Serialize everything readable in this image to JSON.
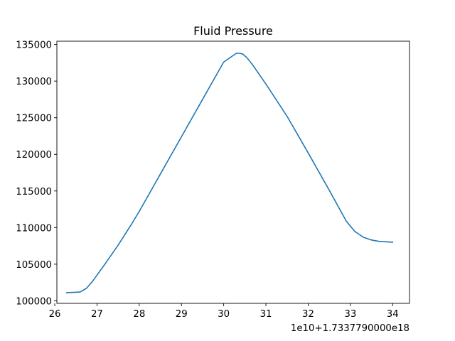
{
  "chart_data": {
    "type": "line",
    "title": "Fluid Pressure",
    "xlabel": "",
    "ylabel": "",
    "x_offset_label": "1e10+1.7337790000e18",
    "xlim": [
      26.05,
      34.4
    ],
    "ylim": [
      99650,
      135450
    ],
    "xticks": [
      26,
      27,
      28,
      29,
      30,
      31,
      32,
      33,
      34
    ],
    "xtick_labels": [
      "26",
      "27",
      "28",
      "29",
      "30",
      "31",
      "32",
      "33",
      "34"
    ],
    "yticks": [
      100000,
      105000,
      110000,
      115000,
      120000,
      125000,
      130000,
      135000
    ],
    "ytick_labels": [
      "100000",
      "105000",
      "110000",
      "115000",
      "120000",
      "125000",
      "130000",
      "135000"
    ],
    "grid": false,
    "legend": "none",
    "series": [
      {
        "color": "#1f77b4",
        "x": [
          26.28,
          26.6,
          26.75,
          26.9,
          27.0,
          27.2,
          27.5,
          27.8,
          28.0,
          28.5,
          29.0,
          29.5,
          30.0,
          30.2,
          30.3,
          30.38,
          30.45,
          30.55,
          30.7,
          31.0,
          31.5,
          32.0,
          32.5,
          32.9,
          33.1,
          33.3,
          33.5,
          33.7,
          34.0
        ],
        "y": [
          101100,
          101200,
          101700,
          102700,
          103500,
          105100,
          107600,
          110300,
          112200,
          117300,
          122400,
          127500,
          132600,
          133400,
          133800,
          133800,
          133700,
          133200,
          132100,
          129600,
          125200,
          120200,
          115100,
          110900,
          109500,
          108700,
          108300,
          108100,
          108000
        ]
      }
    ]
  }
}
